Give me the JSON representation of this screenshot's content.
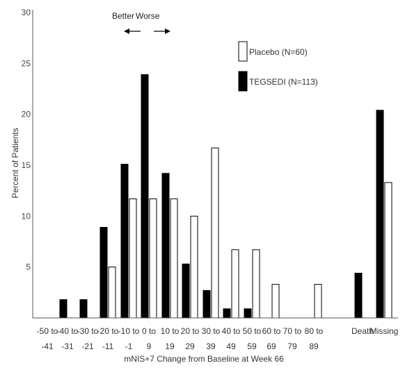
{
  "chart_data": {
    "type": "bar",
    "title": "",
    "xlabel": "mNIS+7 Change from Baseline at Week 66",
    "ylabel": "Percent of Patients",
    "ylim": [
      0,
      30
    ],
    "yticks": [
      "5",
      "10",
      "15",
      "20",
      "25",
      "30"
    ],
    "grid": false,
    "legend_position": "top-right",
    "categories": [
      {
        "top": "-50 to",
        "bottom": "-41"
      },
      {
        "top": "-40 to",
        "bottom": "-31"
      },
      {
        "top": "-30 to",
        "bottom": "-21"
      },
      {
        "top": "-20 to",
        "bottom": "-11"
      },
      {
        "top": "-10 to",
        "bottom": "-1"
      },
      {
        "top": "0 to",
        "bottom": "9"
      },
      {
        "top": "10 to",
        "bottom": "19"
      },
      {
        "top": "20 to",
        "bottom": "29"
      },
      {
        "top": "30 to",
        "bottom": "39"
      },
      {
        "top": "40 to",
        "bottom": "49"
      },
      {
        "top": "50 to",
        "bottom": "59"
      },
      {
        "top": "60 to",
        "bottom": "69"
      },
      {
        "top": "70 to",
        "bottom": "79"
      },
      {
        "top": "80 to",
        "bottom": "89"
      },
      {
        "top": "Death",
        "bottom": ""
      },
      {
        "top": "Missing",
        "bottom": ""
      }
    ],
    "series": [
      {
        "name": "TEGSEDI (N=113)",
        "color": "#000000",
        "values": [
          0,
          1.8,
          1.8,
          8.9,
          15.1,
          23.9,
          14.2,
          5.3,
          2.7,
          0.9,
          0.9,
          0,
          0,
          0,
          4.4,
          20.4
        ]
      },
      {
        "name": "Placebo (N=60)",
        "color": "#ffffff",
        "values": [
          0,
          0,
          0,
          5.0,
          11.7,
          11.7,
          11.7,
          10.0,
          16.7,
          6.7,
          6.7,
          3.3,
          0,
          3.3,
          0,
          13.3
        ]
      }
    ],
    "annotation": {
      "left": "Better",
      "right": "Worse"
    }
  }
}
